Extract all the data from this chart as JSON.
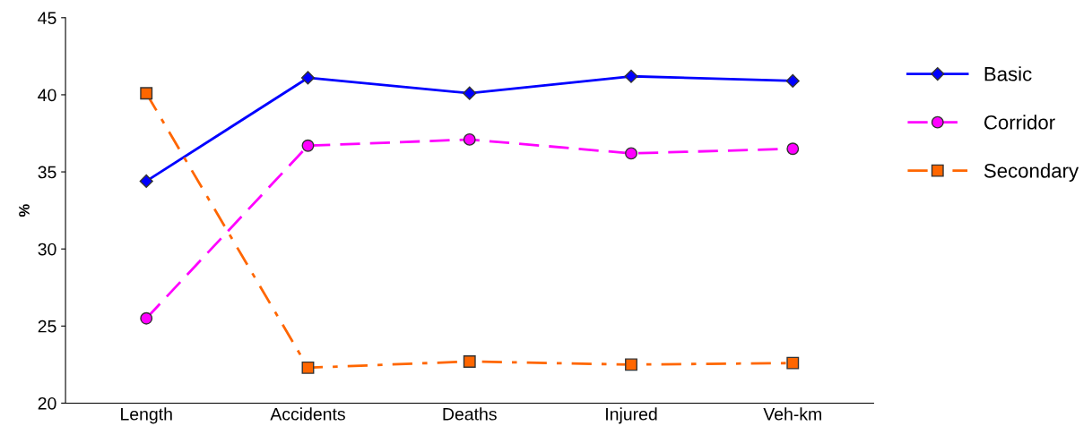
{
  "chart_data": {
    "type": "line",
    "ylabel": "%",
    "categories": [
      "Length",
      "Accidents",
      "Deaths",
      "Injured",
      "Veh-km"
    ],
    "series": [
      {
        "name": "Basic",
        "color": "#0000ff",
        "marker": "diamond",
        "line_style": "solid",
        "values": [
          34.4,
          41.1,
          40.1,
          41.2,
          40.9
        ]
      },
      {
        "name": "Corridor",
        "color": "#ff00ff",
        "marker": "circle",
        "line_style": "dashed",
        "values": [
          25.5,
          36.7,
          37.1,
          36.2,
          36.5
        ]
      },
      {
        "name": "Secondary",
        "color": "#ff6600",
        "marker": "square",
        "line_style": "dashdot",
        "values": [
          40.1,
          22.3,
          22.7,
          22.5,
          22.6
        ]
      }
    ],
    "ylim": [
      20,
      45
    ],
    "yticks": [
      20,
      25,
      30,
      35,
      40,
      45
    ],
    "grid": false,
    "legend": "right"
  }
}
